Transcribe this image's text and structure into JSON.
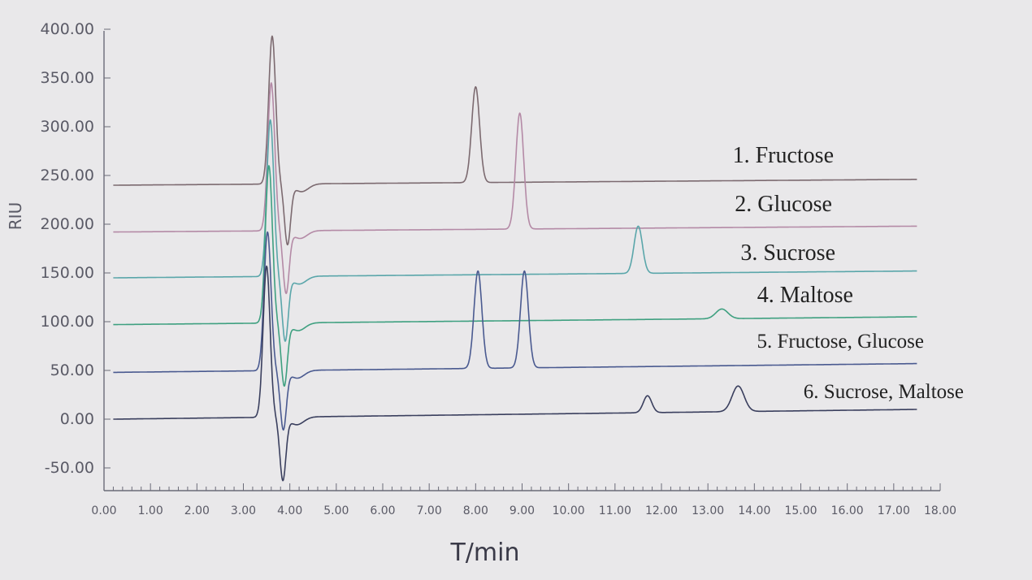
{
  "chart_data": {
    "type": "line",
    "xlabel": "T/min",
    "ylabel": "RIU",
    "xlim": [
      0,
      18
    ],
    "ylim": [
      -80,
      410
    ],
    "x_ticks": [
      "0.00",
      "1.00",
      "2.00",
      "3.00",
      "4.00",
      "5.00",
      "6.00",
      "7.00",
      "8.00",
      "9.00",
      "10.00",
      "11.00",
      "12.00",
      "13.00",
      "14.00",
      "15.00",
      "16.00",
      "17.00",
      "18.00"
    ],
    "y_ticks": [
      "-50.00",
      "0.00",
      "50.00",
      "100.00",
      "150.00",
      "200.00",
      "250.00",
      "300.00",
      "350.00",
      "400.00"
    ],
    "grid": false,
    "legend_position": "right, beside each trace",
    "series": [
      {
        "name": "1. Fructose",
        "color": "#7c6a70",
        "baseline_start": 240,
        "baseline_end": 246,
        "injection_peak": [
          3.62,
          393
        ],
        "injection_dip": [
          3.95,
          180
        ],
        "peaks": [
          {
            "x": 8.0,
            "y": 341
          }
        ]
      },
      {
        "name": "2. Glucose",
        "color": "#b48aa6",
        "baseline_start": 192,
        "baseline_end": 198,
        "injection_peak": [
          3.6,
          345
        ],
        "injection_dip": [
          3.92,
          130
        ],
        "peaks": [
          {
            "x": 8.95,
            "y": 314
          }
        ]
      },
      {
        "name": "3. Sucrose",
        "color": "#5aa6aa",
        "baseline_start": 145,
        "baseline_end": 152,
        "injection_peak": [
          3.58,
          307
        ],
        "injection_dip": [
          3.9,
          81
        ],
        "peaks": [
          {
            "x": 11.5,
            "y": 198
          }
        ]
      },
      {
        "name": "4. Maltose",
        "color": "#3fa080",
        "baseline_start": 97,
        "baseline_end": 105,
        "injection_peak": [
          3.55,
          260
        ],
        "injection_dip": [
          3.88,
          35
        ],
        "peaks": [
          {
            "x": 13.3,
            "y": 113
          }
        ]
      },
      {
        "name": "5. Fructose, Glucose",
        "color": "#4a5a90",
        "baseline_start": 48,
        "baseline_end": 57,
        "injection_peak": [
          3.52,
          192
        ],
        "injection_dip": [
          3.86,
          -10
        ],
        "peaks": [
          {
            "x": 8.05,
            "y": 152
          },
          {
            "x": 9.05,
            "y": 152
          }
        ]
      },
      {
        "name": "6. Sucrose, Maltose",
        "color": "#3a3f5e",
        "baseline_start": 0,
        "baseline_end": 10,
        "injection_peak": [
          3.5,
          157
        ],
        "injection_dip": [
          3.85,
          -62
        ],
        "peaks": [
          {
            "x": 11.7,
            "y": 24
          },
          {
            "x": 13.65,
            "y": 34
          }
        ]
      }
    ]
  }
}
